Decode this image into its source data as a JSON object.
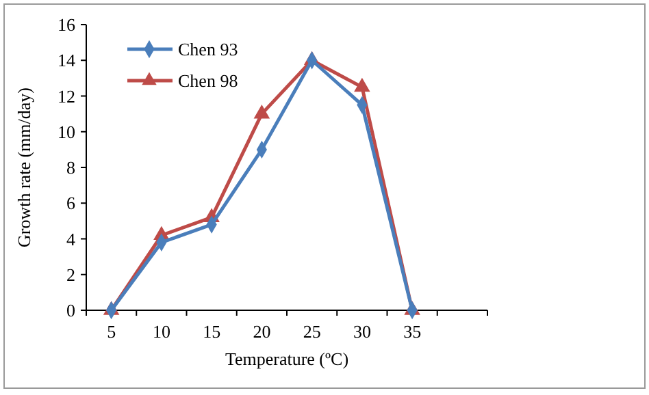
{
  "chart_data": {
    "type": "line",
    "xlabel": "Temperature (ºC)",
    "ylabel": "Growth rate (mm/day)",
    "categories": [
      "5",
      "10",
      "15",
      "20",
      "25",
      "30",
      "35",
      null
    ],
    "series": [
      {
        "name": "Chen 93",
        "color": "#4a7ebb",
        "marker": "diamond",
        "values": [
          0,
          3.8,
          4.8,
          9,
          14,
          11.5,
          0,
          null
        ]
      },
      {
        "name": "Chen 98",
        "color": "#be4b48",
        "marker": "triangle",
        "values": [
          0,
          4.2,
          5.2,
          11,
          14,
          12.5,
          0,
          null
        ]
      }
    ],
    "ylim": [
      0,
      16
    ],
    "yticks": [
      0,
      2,
      4,
      6,
      8,
      10,
      12,
      14,
      16
    ],
    "legend": "top left",
    "grid": false
  }
}
